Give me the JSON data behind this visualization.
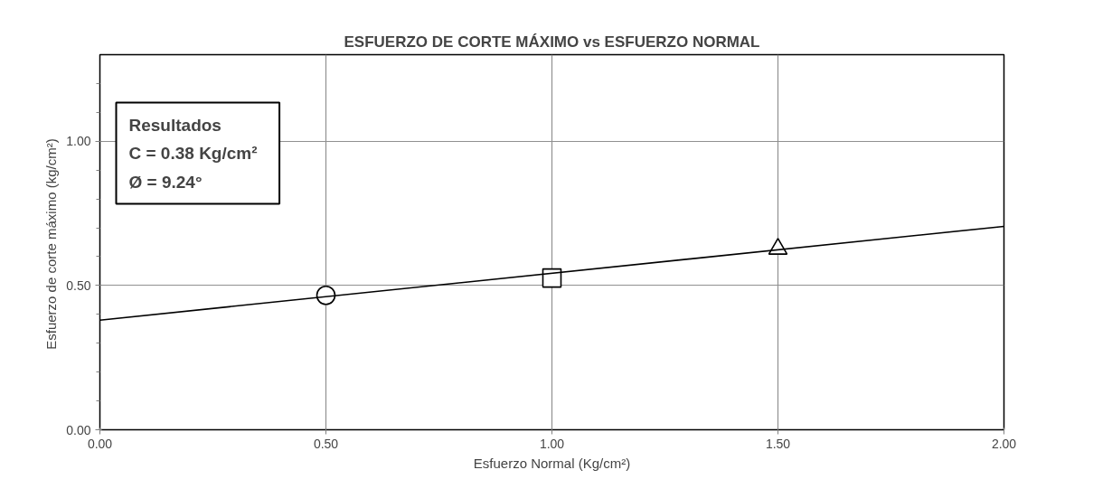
{
  "chart_data": {
    "type": "scatter",
    "title": "ESFUERZO DE CORTE MÁXIMO vs ESFUERZO NORMAL",
    "xlabel": "Esfuerzo Normal (Kg/cm²)",
    "ylabel": "Esfuerzo de corte máximo  (kg/cm²)",
    "series": [
      {
        "x": [
          0.5
        ],
        "values": [
          0.466
        ],
        "marker": "circle",
        "color": "#000000"
      },
      {
        "x": [
          1.0
        ],
        "values": [
          0.526
        ],
        "marker": "square",
        "color": "#000000"
      },
      {
        "x": [
          1.5
        ],
        "values": [
          0.627
        ],
        "marker": "triangle",
        "color": "#000000"
      },
      {
        "type": "line",
        "x": [
          0.0,
          2.0
        ],
        "values": [
          0.38,
          0.705
        ],
        "marker": "none",
        "color": "#000000"
      }
    ],
    "xlim": [
      0,
      2
    ],
    "ylim": [
      0,
      1.3
    ],
    "xticks": [
      {
        "value": 0,
        "label": "0.00"
      },
      {
        "value": 0.5,
        "label": "0.50"
      },
      {
        "value": 1,
        "label": "1.00"
      },
      {
        "value": 1.5,
        "label": "1.50"
      },
      {
        "value": 2,
        "label": "2.00"
      }
    ],
    "yticks": [
      {
        "value": 0,
        "label": "0.00"
      },
      {
        "value": 0.5,
        "label": "0.50"
      },
      {
        "value": 1,
        "label": "1.00"
      }
    ],
    "grid": true,
    "annotations": [
      "Resultados",
      "C  =  0.38 Kg/cm²",
      "Ø  =  9.24°"
    ]
  }
}
